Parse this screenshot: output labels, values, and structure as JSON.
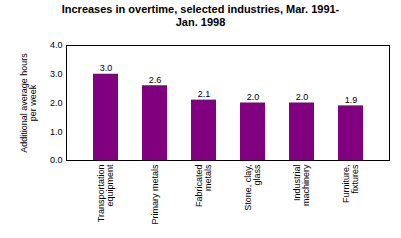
{
  "chart_data": {
    "type": "bar",
    "title": "Increases in overtime, selected industries, Mar. 1991-\nJan. 1998",
    "categories": [
      "Transportation\nequipment",
      "Primary metals",
      "Fabricated\nmetals",
      "Stone, clay,\nglass",
      "Industrial\nmachinery",
      "Furniture,\nfixtures"
    ],
    "values": [
      3.0,
      2.6,
      2.1,
      2.0,
      2.0,
      1.9
    ],
    "value_labels": [
      "3.0",
      "2.6",
      "2.1",
      "2.0",
      "2.0",
      "1.9"
    ],
    "data_labels": true,
    "color": "#800080",
    "ylabel": "Additional average hours\nper week",
    "ylim": [
      0,
      4.0
    ],
    "yticks": [
      {
        "value": 0,
        "label": "0.0"
      },
      {
        "value": 1,
        "label": "1.0"
      },
      {
        "value": 2,
        "label": "2.0"
      },
      {
        "value": 3,
        "label": "3.0"
      },
      {
        "value": 4,
        "label": "4.0"
      }
    ],
    "grid": false
  }
}
